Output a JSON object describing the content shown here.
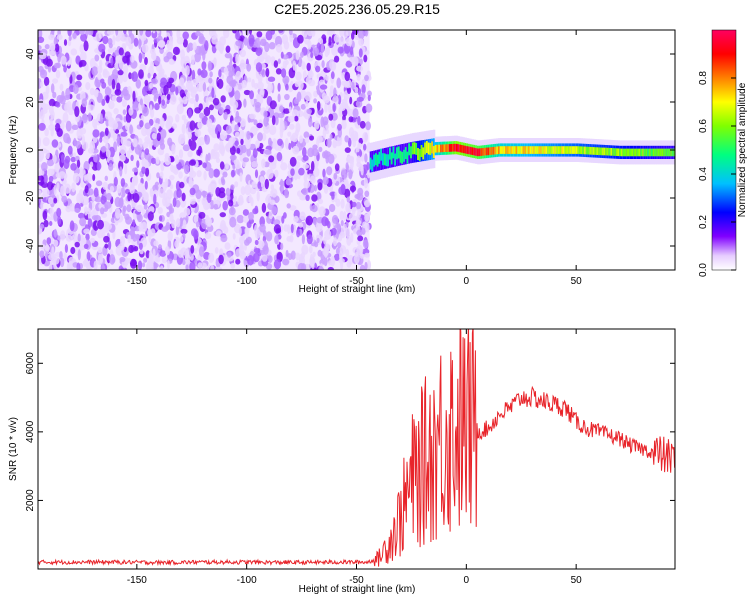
{
  "title": "C2E5.2025.236.05.29.R15",
  "chart_data": [
    {
      "type": "heatmap",
      "xlabel": "Height of straight line (km)",
      "ylabel": "Frequency (Hz)",
      "xlim": [
        -195,
        95
      ],
      "ylim": [
        -50,
        50
      ],
      "xticks": [
        -150,
        -100,
        -50,
        0,
        50
      ],
      "yticks": [
        -40,
        -20,
        0,
        20,
        40
      ],
      "colorbar": {
        "label": "Normalized spectral amplitude",
        "range": [
          0,
          1
        ],
        "ticks": [
          0.0,
          0.2,
          0.4,
          0.6,
          0.8
        ],
        "colormap": [
          "#ffffff",
          "#8000ff",
          "#0000ff",
          "#00c0ff",
          "#00ff80",
          "#80ff00",
          "#ffff00",
          "#ff8000",
          "#ff0000",
          "#ff0060"
        ]
      },
      "noise_region_x": [
        -195,
        -44
      ],
      "trace": {
        "x": [
          -44,
          -35,
          -25,
          -15,
          -5,
          5,
          15,
          30,
          50,
          70,
          93
        ],
        "frequency": [
          -5,
          -3,
          -1,
          0.5,
          1,
          -1,
          0,
          0,
          0,
          -1,
          -1
        ],
        "amplitude": [
          0.4,
          0.45,
          0.55,
          0.7,
          0.95,
          0.9,
          0.75,
          0.7,
          0.65,
          0.6,
          0.55
        ]
      }
    },
    {
      "type": "line",
      "xlabel": "Height of straight line (km)",
      "ylabel": "SNR (10 * v/v)",
      "xlim": [
        -195,
        95
      ],
      "ylim": [
        0,
        7000
      ],
      "xticks": [
        -150,
        -100,
        -50,
        0,
        50
      ],
      "yticks": [
        2000,
        4000,
        6000
      ],
      "series": [
        {
          "color": "#e8242a",
          "x": [
            -195,
            -180,
            -160,
            -140,
            -120,
            -100,
            -80,
            -60,
            -45,
            -40,
            -35,
            -30,
            -25,
            -20,
            -15,
            -10,
            -5,
            0,
            5,
            10,
            15,
            20,
            25,
            30,
            35,
            40,
            45,
            50,
            55,
            60,
            65,
            70,
            75,
            80,
            85,
            90,
            95
          ],
          "values": [
            200,
            200,
            200,
            190,
            200,
            200,
            190,
            200,
            200,
            300,
            800,
            1500,
            2500,
            3000,
            3500,
            4000,
            4200,
            4200,
            4000,
            4100,
            4500,
            4700,
            5000,
            5000,
            4900,
            4800,
            4700,
            4300,
            4100,
            4000,
            3900,
            3800,
            3600,
            3500,
            3400,
            3300,
            3200
          ]
        }
      ]
    }
  ]
}
